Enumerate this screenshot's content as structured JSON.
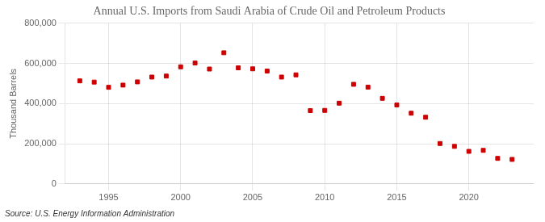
{
  "chart_data": {
    "type": "scatter",
    "title": "Annual U.S. Imports from Saudi Arabia of Crude Oil and Petroleum Products",
    "ylabel": "Thousand Barrels",
    "annotations": [
      "Source: U.S. Energy Information Administration"
    ],
    "x": [
      1993,
      1994,
      1995,
      1996,
      1997,
      1998,
      1999,
      2000,
      2001,
      2002,
      2003,
      2004,
      2005,
      2006,
      2007,
      2008,
      2009,
      2010,
      2011,
      2012,
      2013,
      2014,
      2015,
      2016,
      2017,
      2018,
      2019,
      2020,
      2021,
      2022,
      2023
    ],
    "values": [
      513000,
      507000,
      481000,
      492000,
      508000,
      532000,
      537000,
      583000,
      602000,
      572000,
      653000,
      578000,
      573000,
      562000,
      532000,
      543000,
      365000,
      366000,
      402000,
      496000,
      482000,
      426000,
      393000,
      352000,
      332000,
      201000,
      187000,
      162000,
      167000,
      127000,
      122000
    ],
    "color": "#cc0000",
    "marker": "square",
    "xlim": [
      1992,
      2024.5
    ],
    "xticks": [
      1995,
      2000,
      2005,
      2010,
      2015,
      2020
    ],
    "ylim": [
      0,
      800000
    ],
    "yticks": [
      0,
      {
        "value": 200000,
        "label": "200,000"
      },
      {
        "value": 400000,
        "label": "400,000"
      },
      {
        "value": 600000,
        "label": "600,000"
      },
      {
        "value": 800000,
        "label": "800,000"
      }
    ],
    "grid": true
  }
}
